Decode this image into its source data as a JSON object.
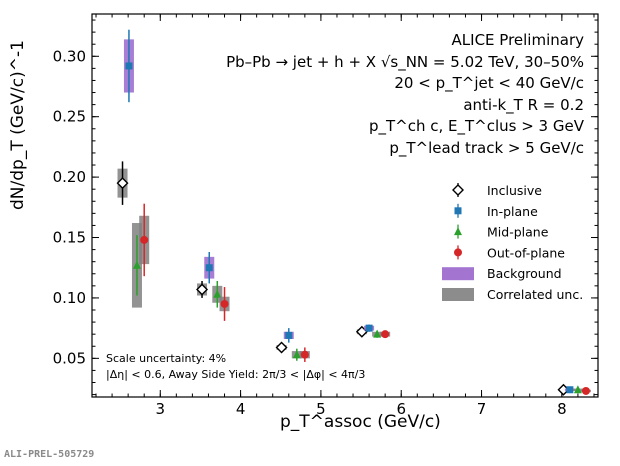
{
  "chart_data": {
    "type": "scatter",
    "xlabel": "p_T^assoc (GeV/c)",
    "ylabel": "dN/dp_T (GeV/c)^-1",
    "xlim": [
      2.15,
      8.45
    ],
    "ylim": [
      0.018,
      0.335
    ],
    "x_ticks": [
      "3",
      "4",
      "5",
      "6",
      "7",
      "8"
    ],
    "y_ticks": [
      "0.05",
      "0.10",
      "0.15",
      "0.20",
      "0.25",
      "0.30"
    ],
    "legend_position": "right",
    "legend": [
      {
        "label": "Inclusive",
        "marker": "open-diamond",
        "color": "#000000"
      },
      {
        "label": "In-plane",
        "marker": "square",
        "color": "#1f77b4"
      },
      {
        "label": "Mid-plane",
        "marker": "triangle",
        "color": "#2ca02c"
      },
      {
        "label": "Out-of-plane",
        "marker": "circle",
        "color": "#d62728"
      },
      {
        "label": "Background",
        "marker": "box",
        "color": "#9966cc"
      },
      {
        "label": "Correlated unc.",
        "marker": "box",
        "color": "#808080"
      }
    ],
    "series": [
      {
        "name": "Inclusive",
        "color": "#000000",
        "x": [
          2.53,
          3.52,
          4.51,
          5.51,
          8.02
        ],
        "y": [
          0.195,
          0.107,
          0.059,
          0.072,
          0.024
        ],
        "yerr": [
          0.018,
          0.007,
          0.003,
          0.002,
          0.001
        ],
        "syst": [
          0.012,
          0.005,
          0.002,
          0.002,
          0.001
        ]
      },
      {
        "name": "In-plane",
        "color": "#1f77b4",
        "x": [
          2.61,
          3.61,
          4.6,
          5.6,
          8.1
        ],
        "y": [
          0.292,
          0.125,
          0.069,
          0.075,
          0.024
        ],
        "yerr": [
          0.03,
          0.013,
          0.006,
          0.003,
          0.001
        ],
        "syst": [
          0.022,
          0.009,
          0.003,
          0.002,
          0.001
        ]
      },
      {
        "name": "Mid-plane",
        "color": "#2ca02c",
        "x": [
          2.71,
          3.71,
          4.7,
          5.7,
          8.2
        ],
        "y": [
          0.127,
          0.103,
          0.053,
          0.07,
          0.024
        ],
        "yerr": [
          0.025,
          0.011,
          0.005,
          0.003,
          0.001
        ],
        "syst": [
          0.035,
          0.007,
          0.003,
          0.002,
          0.001
        ]
      },
      {
        "name": "Out-of-plane",
        "color": "#d62728",
        "x": [
          2.8,
          3.8,
          4.8,
          5.8,
          8.3
        ],
        "y": [
          0.148,
          0.095,
          0.053,
          0.07,
          0.023
        ],
        "yerr": [
          0.03,
          0.014,
          0.006,
          0.003,
          0.001
        ],
        "syst": [
          0.02,
          0.006,
          0.003,
          0.002,
          0.001
        ]
      }
    ]
  },
  "annotations": {
    "line1": "ALICE Preliminary",
    "line2": "Pb–Pb → jet + h + X  √s_NN = 5.02 TeV, 30–50%",
    "line3": "20 < p_T^jet < 40 GeV/c",
    "line4": "anti-k_T R = 0.2",
    "line5": "p_T^ch c, E_T^clus > 3 GeV",
    "line6": "p_T^lead track > 5 GeV/c",
    "scale": "Scale uncertainty: 4%",
    "cuts": "|Δη| < 0.6, Away Side Yield: 2π/3 < |Δφ| < 4π/3"
  },
  "footer_id": "ALI-PREL-505729"
}
